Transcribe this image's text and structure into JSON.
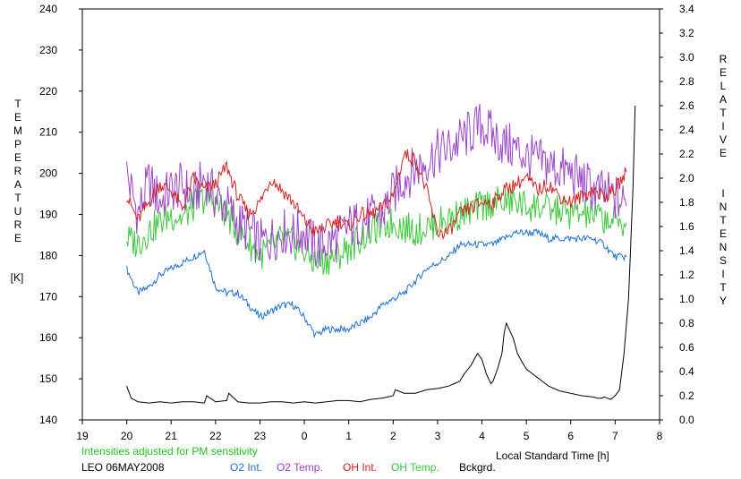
{
  "chart_data": {
    "type": "line",
    "ylabel_left_chars": [
      "T",
      "E",
      "M",
      "P",
      "E",
      "R",
      "A",
      "T",
      "U",
      "R",
      "E"
    ],
    "ylabel_left_unit": "[K]",
    "ylabel_right_chars": [
      "R",
      "E",
      "L",
      "A",
      "T",
      "I",
      "V",
      "E",
      "",
      "",
      "I",
      "N",
      "T",
      "E",
      "N",
      "S",
      "I",
      "T",
      "Y"
    ],
    "xlabel": "Local Standard Time [h]",
    "note": "Intensities adjusted for PM sensitivity",
    "station": "LEO 06MAY2008",
    "x_ticks": [
      "19",
      "20",
      "21",
      "22",
      "23",
      "0",
      "1",
      "2",
      "3",
      "4",
      "5",
      "6",
      "7",
      "8"
    ],
    "y_left_ticks": [
      "140",
      "150",
      "160",
      "170",
      "180",
      "190",
      "200",
      "210",
      "220",
      "230",
      "240"
    ],
    "y_right_ticks": [
      "0.0",
      "0.2",
      "0.4",
      "0.6",
      "0.8",
      "1.0",
      "1.2",
      "1.4",
      "1.6",
      "1.8",
      "2.0",
      "2.2",
      "2.4",
      "2.6",
      "2.8",
      "3.0",
      "3.2",
      "3.4"
    ],
    "x_range": [
      19,
      32
    ],
    "ylim_left": [
      140,
      240
    ],
    "ylim_right": [
      0,
      3.4
    ],
    "series": [
      {
        "name": "O2 Int.",
        "color": "#1f6fd0",
        "axis": "right",
        "x": [
          20.0,
          20.25,
          20.5,
          20.75,
          21.0,
          21.25,
          21.5,
          21.75,
          22.0,
          22.25,
          22.5,
          22.75,
          23.0,
          23.25,
          23.5,
          23.75,
          24.0,
          24.25,
          24.5,
          24.75,
          25.0,
          25.25,
          25.5,
          25.75,
          26.0,
          26.25,
          26.5,
          26.75,
          27.0,
          27.25,
          27.5,
          27.75,
          28.0,
          28.25,
          28.5,
          28.75,
          29.0,
          29.25,
          29.5,
          29.75,
          30.0,
          30.25,
          30.5,
          30.75,
          31.0,
          31.25
        ],
        "y": [
          1.25,
          1.05,
          1.1,
          1.2,
          1.25,
          1.3,
          1.35,
          1.4,
          1.1,
          1.05,
          1.05,
          0.95,
          0.85,
          0.9,
          0.95,
          0.95,
          0.85,
          0.7,
          0.75,
          0.75,
          0.75,
          0.8,
          0.85,
          0.95,
          1.0,
          1.05,
          1.15,
          1.25,
          1.3,
          1.35,
          1.45,
          1.45,
          1.45,
          1.45,
          1.5,
          1.55,
          1.55,
          1.55,
          1.5,
          1.5,
          1.5,
          1.5,
          1.5,
          1.45,
          1.35,
          1.35
        ]
      },
      {
        "name": "O2 Temp.",
        "color": "#9b45c9",
        "axis": "left",
        "x": [
          20.0,
          20.25,
          20.5,
          20.75,
          21.0,
          21.25,
          21.5,
          21.75,
          22.0,
          22.25,
          22.5,
          22.75,
          23.0,
          23.25,
          23.5,
          23.75,
          24.0,
          24.25,
          24.5,
          24.75,
          25.0,
          25.25,
          25.5,
          25.75,
          26.0,
          26.25,
          26.5,
          26.75,
          27.0,
          27.25,
          27.5,
          27.75,
          28.0,
          28.25,
          28.5,
          28.75,
          29.0,
          29.25,
          29.5,
          29.75,
          30.0,
          30.25,
          30.5,
          30.75,
          31.0,
          31.25
        ],
        "y": [
          200,
          190,
          198,
          193,
          196,
          197,
          194,
          199,
          194,
          192,
          188,
          186,
          183,
          184,
          186,
          185,
          186,
          182,
          183,
          184,
          187,
          188,
          189,
          190,
          195,
          199,
          201,
          203,
          205,
          206,
          208,
          210,
          212,
          209,
          207,
          206,
          204,
          203,
          202,
          201,
          200,
          198,
          196,
          195,
          194,
          192
        ]
      },
      {
        "name": "OH Int.",
        "color": "#d42020",
        "axis": "right",
        "x": [
          20.0,
          20.25,
          20.5,
          20.75,
          21.0,
          21.25,
          21.5,
          21.75,
          22.0,
          22.25,
          22.5,
          22.75,
          23.0,
          23.25,
          23.5,
          23.75,
          24.0,
          24.25,
          24.5,
          24.75,
          25.0,
          25.25,
          25.5,
          25.75,
          26.0,
          26.25,
          26.5,
          26.75,
          27.0,
          27.25,
          27.5,
          27.75,
          28.0,
          28.25,
          28.5,
          28.75,
          29.0,
          29.25,
          29.5,
          29.75,
          30.0,
          30.25,
          30.5,
          30.75,
          31.0,
          31.25
        ],
        "y": [
          1.85,
          1.65,
          1.8,
          1.95,
          1.9,
          1.75,
          2.0,
          1.9,
          1.95,
          2.1,
          1.85,
          1.7,
          1.8,
          2.0,
          1.9,
          1.8,
          1.65,
          1.55,
          1.6,
          1.65,
          1.6,
          1.7,
          1.7,
          1.75,
          1.85,
          2.2,
          2.15,
          1.9,
          1.55,
          1.55,
          1.7,
          1.75,
          1.8,
          1.8,
          1.9,
          1.95,
          2.0,
          1.9,
          1.95,
          1.85,
          1.8,
          1.85,
          1.9,
          1.85,
          1.9,
          2.05
        ]
      },
      {
        "name": "OH Temp.",
        "color": "#3bc83b",
        "axis": "left",
        "x": [
          20.0,
          20.25,
          20.5,
          20.75,
          21.0,
          21.25,
          21.5,
          21.75,
          22.0,
          22.25,
          22.5,
          22.75,
          23.0,
          23.25,
          23.5,
          23.75,
          24.0,
          24.25,
          24.5,
          24.75,
          25.0,
          25.25,
          25.5,
          25.75,
          26.0,
          26.25,
          26.5,
          26.75,
          27.0,
          27.25,
          27.5,
          27.75,
          28.0,
          28.25,
          28.5,
          28.75,
          29.0,
          29.25,
          29.5,
          29.75,
          30.0,
          30.25,
          30.5,
          30.75,
          31.0,
          31.25
        ],
        "y": [
          184,
          183,
          186,
          188,
          190,
          189,
          192,
          194,
          193,
          190,
          186,
          183,
          180,
          182,
          184,
          183,
          181,
          178,
          179,
          180,
          182,
          184,
          186,
          187,
          188,
          187,
          186,
          187,
          188,
          189,
          190,
          191,
          192,
          193,
          193,
          193,
          192,
          192,
          191,
          191,
          190,
          190,
          190,
          189,
          188,
          188
        ]
      },
      {
        "name": "Bckgrd.",
        "color": "#000000",
        "axis": "right",
        "x": [
          20.0,
          20.1,
          20.25,
          20.5,
          20.75,
          21.0,
          21.25,
          21.5,
          21.75,
          21.8,
          22.0,
          22.25,
          22.3,
          22.5,
          22.75,
          23.0,
          23.25,
          23.5,
          23.75,
          24.0,
          24.25,
          24.5,
          24.75,
          25.0,
          25.25,
          25.5,
          25.75,
          26.0,
          26.05,
          26.25,
          26.5,
          26.75,
          27.0,
          27.25,
          27.5,
          27.6,
          27.75,
          27.9,
          28.0,
          28.1,
          28.2,
          28.25,
          28.35,
          28.45,
          28.5,
          28.55,
          28.7,
          28.8,
          28.9,
          29.0,
          29.25,
          29.5,
          29.75,
          30.0,
          30.25,
          30.5,
          30.6,
          30.7,
          30.75,
          30.9,
          31.0,
          31.1,
          31.2,
          31.3,
          31.4,
          31.45
        ],
        "y": [
          0.28,
          0.18,
          0.15,
          0.14,
          0.15,
          0.14,
          0.15,
          0.15,
          0.14,
          0.2,
          0.15,
          0.16,
          0.22,
          0.15,
          0.14,
          0.14,
          0.15,
          0.15,
          0.14,
          0.15,
          0.14,
          0.15,
          0.16,
          0.16,
          0.15,
          0.17,
          0.18,
          0.2,
          0.25,
          0.22,
          0.22,
          0.25,
          0.26,
          0.28,
          0.32,
          0.38,
          0.45,
          0.55,
          0.5,
          0.38,
          0.3,
          0.32,
          0.42,
          0.55,
          0.72,
          0.8,
          0.68,
          0.55,
          0.48,
          0.42,
          0.35,
          0.28,
          0.24,
          0.22,
          0.2,
          0.19,
          0.18,
          0.18,
          0.19,
          0.17,
          0.2,
          0.25,
          0.55,
          1.0,
          1.9,
          2.6
        ]
      }
    ]
  }
}
